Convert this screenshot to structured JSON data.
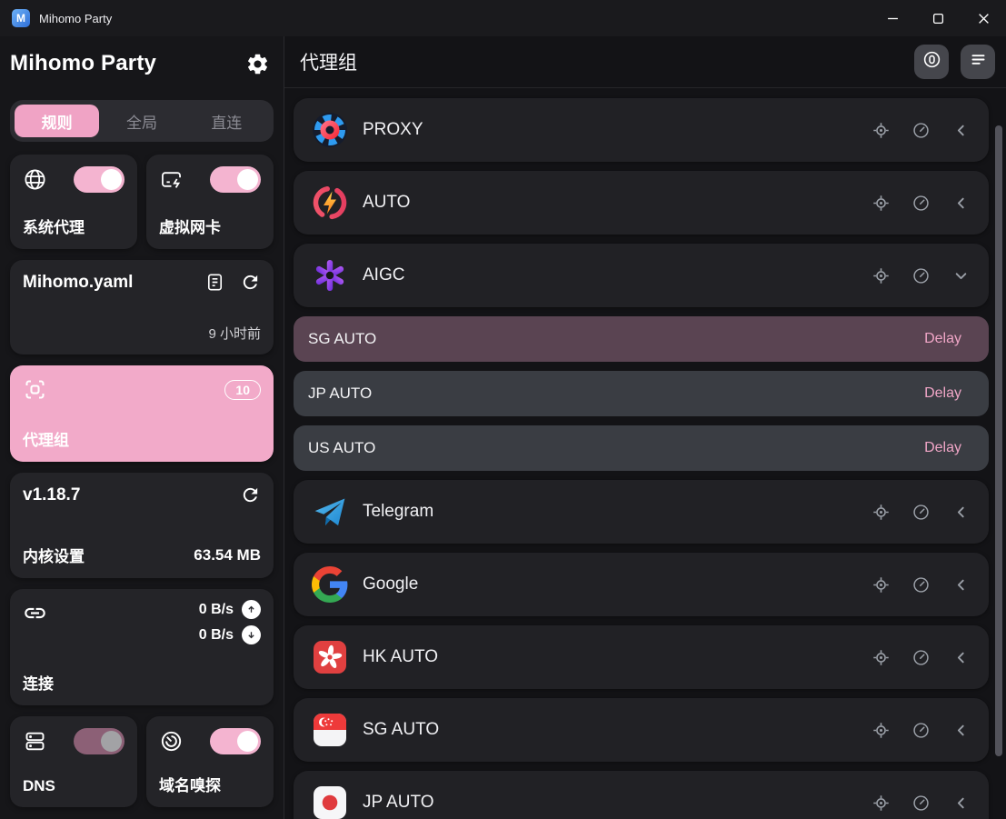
{
  "titlebar": {
    "title": "Mihomo Party"
  },
  "sidebar": {
    "title": "Mihomo Party",
    "tabs": [
      {
        "id": "rule",
        "label": "规则",
        "active": true
      },
      {
        "id": "global",
        "label": "全局",
        "active": false
      },
      {
        "id": "direct",
        "label": "直连",
        "active": false
      }
    ],
    "system_proxy": {
      "label": "系统代理",
      "enabled": true
    },
    "tun": {
      "label": "虚拟网卡",
      "enabled": true
    },
    "profile": {
      "name": "Mihomo.yaml",
      "updated": "9 小时前"
    },
    "proxy_groups": {
      "label": "代理组",
      "count": "10",
      "active": true
    },
    "core": {
      "version": "v1.18.7",
      "settings_label": "内核设置",
      "memory": "63.54 MB"
    },
    "connections": {
      "label": "连接",
      "upload": "0 B/s",
      "download": "0 B/s"
    },
    "dns": {
      "label": "DNS",
      "enabled": true,
      "muted": true
    },
    "sniff": {
      "label": "域名嗅探",
      "enabled": true
    }
  },
  "main": {
    "title": "代理组",
    "groups": [
      {
        "name": "PROXY",
        "icon": "proxy-logo",
        "chevron": "left",
        "expanded": false
      },
      {
        "name": "AUTO",
        "icon": "auto-logo",
        "chevron": "left",
        "expanded": false
      },
      {
        "name": "AIGC",
        "icon": "openai-logo",
        "chevron": "down",
        "expanded": true,
        "nodes": [
          {
            "name": "SG AUTO",
            "delay": "Delay",
            "selected": true
          },
          {
            "name": "JP AUTO",
            "delay": "Delay",
            "selected": false
          },
          {
            "name": "US AUTO",
            "delay": "Delay",
            "selected": false
          }
        ]
      },
      {
        "name": "Telegram",
        "icon": "telegram-logo",
        "chevron": "left",
        "expanded": false
      },
      {
        "name": "Google",
        "icon": "google-logo",
        "chevron": "left",
        "expanded": false
      },
      {
        "name": "HK AUTO",
        "icon": "hk-flag",
        "chevron": "left",
        "expanded": false
      },
      {
        "name": "SG AUTO",
        "icon": "sg-flag",
        "chevron": "left",
        "expanded": false
      },
      {
        "name": "JP AUTO",
        "icon": "jp-flag",
        "chevron": "left",
        "expanded": false
      }
    ]
  },
  "colors": {
    "accent_pink": "#f2aac9",
    "delay_pink": "#efa5c6",
    "selected_node_bg": "#5a4452",
    "node_bg": "#3a3d43",
    "card_bg": "#242428",
    "row_bg": "#212125"
  }
}
